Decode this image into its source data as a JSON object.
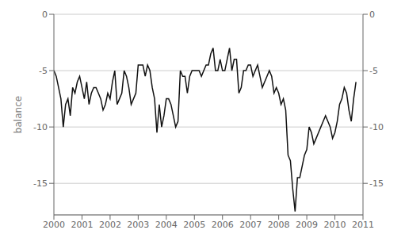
{
  "chart_data": {
    "type": "line",
    "ylabel": "balance",
    "x": [
      2000,
      2000.0833333333333,
      2000.1666666666667,
      2000.25,
      2000.3333333333333,
      2000.4166666666667,
      2000.5,
      2000.5833333333333,
      2000.6666666666667,
      2000.75,
      2000.8333333333333,
      2000.9166666666667,
      2001,
      2001.0833333333333,
      2001.1666666666667,
      2001.25,
      2001.3333333333333,
      2001.4166666666667,
      2001.5,
      2001.5833333333333,
      2001.6666666666667,
      2001.75,
      2001.8333333333333,
      2001.9166666666667,
      2002,
      2002.0833333333333,
      2002.1666666666667,
      2002.25,
      2002.3333333333333,
      2002.4166666666667,
      2002.5,
      2002.5833333333333,
      2002.6666666666667,
      2002.75,
      2002.8333333333333,
      2002.9166666666667,
      2003,
      2003.0833333333333,
      2003.1666666666667,
      2003.25,
      2003.3333333333333,
      2003.4166666666667,
      2003.5,
      2003.5833333333333,
      2003.6666666666667,
      2003.75,
      2003.8333333333333,
      2003.9166666666667,
      2004,
      2004.0833333333333,
      2004.1666666666667,
      2004.25,
      2004.3333333333333,
      2004.4166666666667,
      2004.5,
      2004.5833333333333,
      2004.6666666666667,
      2004.75,
      2004.8333333333333,
      2004.9166666666667,
      2005,
      2005.0833333333333,
      2005.1666666666667,
      2005.25,
      2005.3333333333333,
      2005.4166666666667,
      2005.5,
      2005.5833333333333,
      2005.6666666666667,
      2005.75,
      2005.8333333333333,
      2005.9166666666667,
      2006,
      2006.0833333333333,
      2006.1666666666667,
      2006.25,
      2006.3333333333333,
      2006.4166666666667,
      2006.5,
      2006.5833333333333,
      2006.6666666666667,
      2006.75,
      2006.8333333333333,
      2006.9166666666667,
      2007,
      2007.0833333333333,
      2007.1666666666667,
      2007.25,
      2007.3333333333333,
      2007.4166666666667,
      2007.5,
      2007.5833333333333,
      2007.6666666666667,
      2007.75,
      2007.8333333333333,
      2007.9166666666667,
      2008,
      2008.0833333333333,
      2008.1666666666667,
      2008.25,
      2008.3333333333333,
      2008.4166666666667,
      2008.5,
      2008.5833333333333,
      2008.6666666666667,
      2008.75,
      2008.8333333333333,
      2008.9166666666667,
      2009,
      2009.0833333333333,
      2009.1666666666667,
      2009.25,
      2009.3333333333333,
      2009.4166666666667,
      2009.5,
      2009.5833333333333,
      2009.6666666666667,
      2009.75,
      2009.8333333333333,
      2009.9166666666667,
      2010,
      2010.0833333333333,
      2010.1666666666667,
      2010.25,
      2010.3333333333333,
      2010.4166666666667,
      2010.5,
      2010.5833333333333,
      2010.6666666666667,
      2010.75
    ],
    "values": [
      -5.0,
      -5.5,
      -6.5,
      -7.5,
      -10.0,
      -8.0,
      -7.5,
      -9.0,
      -6.5,
      -7.0,
      -6.0,
      -5.5,
      -6.5,
      -7.5,
      -6.0,
      -8.0,
      -7.0,
      -6.5,
      -6.5,
      -7.0,
      -7.5,
      -8.5,
      -8.0,
      -7.0,
      -7.5,
      -6.0,
      -5.0,
      -8.0,
      -7.5,
      -7.0,
      -5.0,
      -5.5,
      -6.5,
      -8.0,
      -7.5,
      -7.0,
      -4.5,
      -4.5,
      -4.5,
      -5.5,
      -4.5,
      -5.0,
      -6.5,
      -7.5,
      -10.5,
      -8.0,
      -10.0,
      -9.0,
      -7.5,
      -7.5,
      -8.0,
      -9.0,
      -10.0,
      -9.5,
      -5.0,
      -5.5,
      -5.5,
      -7.0,
      -5.5,
      -5.0,
      -5.0,
      -5.0,
      -5.0,
      -5.5,
      -5.0,
      -4.5,
      -4.5,
      -3.5,
      -3.0,
      -5.0,
      -5.0,
      -4.0,
      -5.0,
      -5.0,
      -4.0,
      -3.0,
      -5.0,
      -4.0,
      -4.0,
      -7.0,
      -6.5,
      -5.0,
      -5.0,
      -4.5,
      -4.5,
      -5.5,
      -5.0,
      -4.5,
      -5.5,
      -6.5,
      -6.0,
      -5.5,
      -5.0,
      -5.5,
      -7.0,
      -6.5,
      -7.0,
      -8.0,
      -7.5,
      -8.5,
      -12.5,
      -13.0,
      -15.5,
      -17.5,
      -14.5,
      -14.5,
      -13.5,
      -12.5,
      -12.0,
      -10.0,
      -10.5,
      -11.5,
      -11.0,
      -10.5,
      -10.0,
      -9.5,
      -9.0,
      -9.5,
      -10.0,
      -11.0,
      -10.5,
      -9.5,
      -8.0,
      -7.5,
      -6.5,
      -7.0,
      -8.5,
      -9.5,
      -7.5,
      -6.0
    ],
    "color": "#111111",
    "xlim": [
      2000.0,
      2011.0
    ],
    "xticks": [
      2000,
      2001,
      2002,
      2003,
      2004,
      2005,
      2006,
      2007,
      2008,
      2009,
      2010,
      2011
    ],
    "ylim": [
      -17.8,
      0.0
    ],
    "yticks": [
      0,
      -5,
      -10,
      -15
    ],
    "y2lim": [
      -17.8,
      0.0
    ],
    "y2ticks": [
      0,
      -5,
      -10,
      -15
    ],
    "grid": true
  }
}
